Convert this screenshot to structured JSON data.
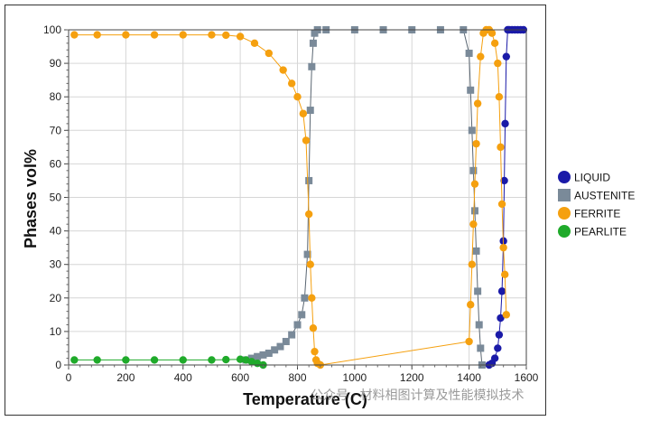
{
  "chart_data": {
    "type": "scatter",
    "xlabel": "Temperature (C)",
    "ylabel": "Phases vol%",
    "xlim": [
      0,
      1600
    ],
    "ylim": [
      0,
      100
    ],
    "xticks": [
      0,
      200,
      400,
      600,
      800,
      1000,
      1200,
      1400,
      1600
    ],
    "yticks": [
      0,
      10,
      20,
      30,
      40,
      50,
      60,
      70,
      80,
      90,
      100
    ],
    "grid": true,
    "legend_position": "right",
    "series": [
      {
        "name": "LIQUID",
        "color": "#1a1aa8",
        "marker": "circle",
        "x": [
          1470,
          1480,
          1490,
          1500,
          1505,
          1510,
          1515,
          1520,
          1523,
          1526,
          1530,
          1535,
          1540,
          1550,
          1560,
          1570,
          1580,
          1590
        ],
        "y": [
          0,
          0.5,
          2,
          5,
          9,
          14,
          22,
          37,
          55,
          72,
          92,
          100,
          100,
          100,
          100,
          100,
          100,
          100
        ]
      },
      {
        "name": "AUSTENITE",
        "color": "#7a8a99",
        "marker": "square",
        "x": [
          620,
          640,
          660,
          680,
          700,
          720,
          740,
          760,
          780,
          800,
          815,
          825,
          835,
          840,
          845,
          850,
          855,
          860,
          870,
          900,
          1000,
          1100,
          1200,
          1300,
          1380,
          1400,
          1405,
          1410,
          1415,
          1420,
          1425,
          1430,
          1435,
          1440,
          1445
        ],
        "y": [
          1.5,
          2,
          2.5,
          3,
          3.5,
          4.5,
          5.5,
          7,
          9,
          12,
          15,
          20,
          33,
          55,
          76,
          89,
          96,
          99,
          100,
          100,
          100,
          100,
          100,
          100,
          100,
          93,
          82,
          70,
          58,
          46,
          34,
          22,
          12,
          5,
          0
        ]
      },
      {
        "name": "FERRITE",
        "color": "#f5a00f",
        "marker": "circle",
        "x": [
          20,
          100,
          200,
          300,
          400,
          500,
          550,
          600,
          650,
          700,
          750,
          780,
          800,
          820,
          830,
          840,
          845,
          850,
          855,
          860,
          865,
          870,
          880,
          1400,
          1405,
          1410,
          1415,
          1420,
          1425,
          1430,
          1440,
          1450,
          1460,
          1470,
          1480,
          1490,
          1500,
          1505,
          1510,
          1515,
          1520,
          1525,
          1530
        ],
        "y": [
          98.5,
          98.5,
          98.5,
          98.5,
          98.5,
          98.5,
          98.4,
          98,
          96,
          93,
          88,
          84,
          80,
          75,
          67,
          45,
          30,
          20,
          11,
          4,
          1.5,
          0.5,
          0,
          7,
          18,
          30,
          42,
          54,
          66,
          78,
          92,
          99,
          100,
          100,
          99,
          96,
          90,
          80,
          65,
          48,
          35,
          27,
          15
        ]
      },
      {
        "name": "PEARLITE",
        "color": "#1faa2a",
        "marker": "circle",
        "x": [
          20,
          100,
          200,
          300,
          400,
          500,
          550,
          600,
          620,
          640,
          660,
          680
        ],
        "y": [
          1.5,
          1.5,
          1.5,
          1.5,
          1.5,
          1.5,
          1.6,
          1.7,
          1.5,
          1,
          0.5,
          0
        ]
      }
    ]
  },
  "watermark": "公众号 · 材料相图计算及性能模拟技术"
}
